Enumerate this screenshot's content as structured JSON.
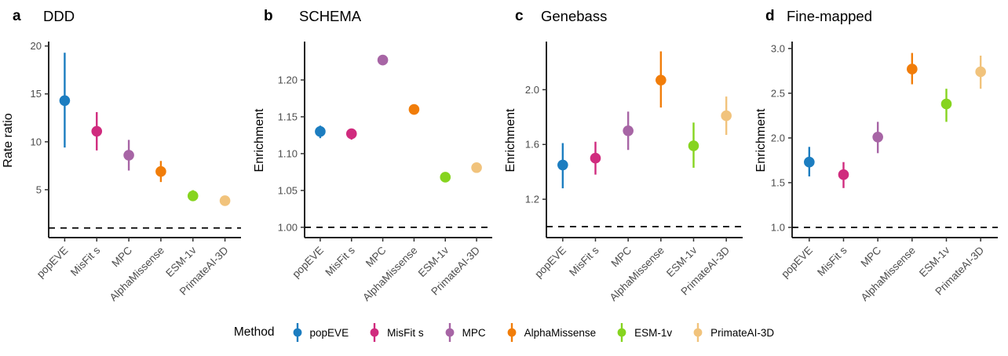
{
  "legend": {
    "title": "Method",
    "entries": [
      {
        "label": "popEVE",
        "color": "#1c7dc0"
      },
      {
        "label": "MisFit s",
        "color": "#d02b7e"
      },
      {
        "label": "MPC",
        "color": "#a765a5"
      },
      {
        "label": "AlphaMissense",
        "color": "#f17d09"
      },
      {
        "label": "ESM-1v",
        "color": "#86d41f"
      },
      {
        "label": "PrimateAI-3D",
        "color": "#f1c37c"
      }
    ]
  },
  "styles": {
    "axis_text_color": "#4d4d4d",
    "axis_line_color": "#000000",
    "ref_line_color": "#000000",
    "background": "#ffffff"
  },
  "chart_data": [
    {
      "type": "scatter",
      "panel": "a",
      "title": "DDD",
      "xlabel": "",
      "ylabel": "Rate ratio",
      "categories": [
        "popEVE",
        "MisFit s",
        "MPC",
        "AlphaMissense",
        "ESM-1v",
        "PrimateAI-3D"
      ],
      "values": [
        14.3,
        11.1,
        8.6,
        6.9,
        4.35,
        3.85
      ],
      "ci_low": [
        9.4,
        9.1,
        7.0,
        5.8,
        3.85,
        3.5
      ],
      "ci_high": [
        19.3,
        13.1,
        10.2,
        8.0,
        4.95,
        4.2
      ],
      "ytick_values": [
        5,
        10,
        15,
        20
      ],
      "ytick_labels": [
        "5",
        "10",
        "15",
        "20"
      ],
      "ylim": [
        0,
        20.3
      ],
      "ref_line": 1,
      "grid": false,
      "legend_position": "bottom"
    },
    {
      "type": "scatter",
      "panel": "b",
      "title": "SCHEMA",
      "xlabel": "",
      "ylabel": "Enrichment",
      "categories": [
        "popEVE",
        "MisFit s",
        "MPC",
        "AlphaMissense",
        "ESM-1v",
        "PrimateAI-3D"
      ],
      "values": [
        1.13,
        1.127,
        1.227,
        1.16,
        1.068,
        1.081
      ],
      "ci_low": [
        1.121,
        1.119,
        1.22,
        1.153,
        1.062,
        1.075
      ],
      "ci_high": [
        1.138,
        1.134,
        1.234,
        1.167,
        1.074,
        1.087
      ],
      "ytick_values": [
        1.0,
        1.05,
        1.1,
        1.15,
        1.2
      ],
      "ytick_labels": [
        "1.00",
        "1.05",
        "1.10",
        "1.15",
        "1.20"
      ],
      "ylim": [
        0.986,
        1.25
      ],
      "ref_line": 1,
      "grid": false,
      "legend_position": "bottom"
    },
    {
      "type": "scatter",
      "panel": "c",
      "title": "Genebass",
      "xlabel": "",
      "ylabel": "Enrichment",
      "categories": [
        "popEVE",
        "MisFit s",
        "MPC",
        "AlphaMissense",
        "ESM-1v",
        "PrimateAI-3D"
      ],
      "values": [
        1.45,
        1.5,
        1.7,
        2.07,
        1.59,
        1.81
      ],
      "ci_low": [
        1.28,
        1.38,
        1.56,
        1.87,
        1.43,
        1.67
      ],
      "ci_high": [
        1.61,
        1.62,
        1.84,
        2.28,
        1.76,
        1.95
      ],
      "ytick_values": [
        1.2,
        1.6,
        2.0
      ],
      "ytick_labels": [
        "1.2",
        "1.6",
        "2.0"
      ],
      "ylim": [
        0.92,
        2.34
      ],
      "ref_line": 1,
      "grid": false,
      "legend_position": "bottom"
    },
    {
      "type": "scatter",
      "panel": "d",
      "title": "Fine-mapped",
      "xlabel": "",
      "ylabel": "Enrichment",
      "categories": [
        "popEVE",
        "MisFit s",
        "MPC",
        "AlphaMissense",
        "ESM-1v",
        "PrimateAI-3D"
      ],
      "values": [
        1.73,
        1.59,
        2.01,
        2.77,
        2.38,
        2.74
      ],
      "ci_low": [
        1.57,
        1.44,
        1.83,
        2.6,
        2.18,
        2.55
      ],
      "ci_high": [
        1.9,
        1.73,
        2.18,
        2.95,
        2.55,
        2.92
      ],
      "ytick_values": [
        1.0,
        1.5,
        2.0,
        2.5,
        3.0
      ],
      "ytick_labels": [
        "1.0",
        "1.5",
        "2.0",
        "2.5",
        "3.0"
      ],
      "ylim": [
        0.886,
        3.06
      ],
      "ref_line": 1,
      "grid": false,
      "legend_position": "bottom"
    }
  ]
}
